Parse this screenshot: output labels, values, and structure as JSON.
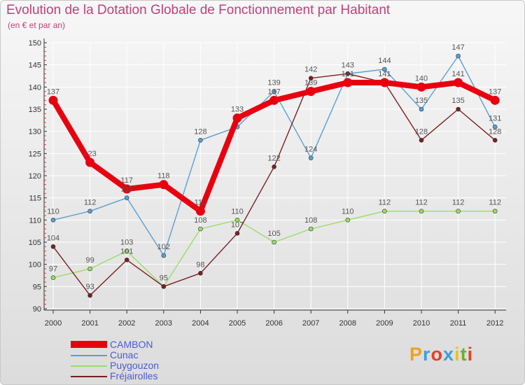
{
  "chart_data": {
    "type": "line",
    "title": "Evolution de la Dotation Globale de Fonctionnement par Habitant",
    "subtitle": "(en € et par an)",
    "xlabel": "",
    "ylabel": "",
    "ylim": [
      90,
      150
    ],
    "yticks": [
      90,
      95,
      100,
      105,
      110,
      115,
      120,
      125,
      130,
      135,
      140,
      145,
      150
    ],
    "categories": [
      "2000",
      "2001",
      "2002",
      "2003",
      "2004",
      "2005",
      "2006",
      "2007",
      "2008",
      "2009",
      "2010",
      "2011",
      "2012"
    ],
    "series": [
      {
        "name": "CAMBON",
        "color": "#e8000f",
        "values": [
          137,
          123,
          117,
          118,
          112,
          133,
          137,
          139,
          141,
          141,
          140,
          141,
          137
        ]
      },
      {
        "name": "Cunac",
        "color": "#5a9fd4",
        "values": [
          110,
          112,
          115,
          102,
          128,
          131,
          139,
          124,
          143,
          144,
          135,
          147,
          131
        ]
      },
      {
        "name": "Puygouzon",
        "color": "#99dd66",
        "values": [
          97,
          99,
          103,
          95,
          108,
          110,
          105,
          108,
          110,
          112,
          112,
          112,
          112
        ]
      },
      {
        "name": "Fréjairolles",
        "color": "#7a2020",
        "values": [
          104,
          93,
          101,
          95,
          98,
          107,
          122,
          142,
          143,
          141,
          128,
          135,
          128
        ]
      }
    ],
    "data_labels": [
      {
        "x": "2000",
        "text": "137"
      },
      {
        "x": "2000",
        "text": "110"
      },
      {
        "x": "2000",
        "text": "104"
      },
      {
        "x": "2000",
        "text": "97"
      },
      {
        "x": "2001",
        "text": "123"
      },
      {
        "x": "2001",
        "text": "112"
      },
      {
        "x": "2001",
        "text": "99"
      },
      {
        "x": "2001",
        "text": "93"
      },
      {
        "x": "2002",
        "text": "117"
      },
      {
        "x": "2002",
        "text": "115"
      },
      {
        "x": "2002",
        "text": "103"
      },
      {
        "x": "2002",
        "text": "101"
      },
      {
        "x": "2003",
        "text": "118"
      },
      {
        "x": "2003",
        "text": "102"
      },
      {
        "x": "2003",
        "text": "95"
      },
      {
        "x": "2004",
        "text": "128"
      },
      {
        "x": "2004",
        "text": "112"
      },
      {
        "x": "2004",
        "text": "108"
      },
      {
        "x": "2004",
        "text": "98"
      },
      {
        "x": "2005",
        "text": "133"
      },
      {
        "x": "2005",
        "text": "110"
      },
      {
        "x": "2005",
        "text": "107"
      },
      {
        "x": "2006",
        "text": "139"
      },
      {
        "x": "2006",
        "text": "137"
      },
      {
        "x": "2006",
        "text": "122"
      },
      {
        "x": "2006",
        "text": "105"
      },
      {
        "x": "2007",
        "text": "142"
      },
      {
        "x": "2007",
        "text": "139"
      },
      {
        "x": "2007",
        "text": "124"
      },
      {
        "x": "2007",
        "text": "108"
      },
      {
        "x": "2008",
        "text": "143"
      },
      {
        "x": "2008",
        "text": "141"
      },
      {
        "x": "2008",
        "text": "110"
      },
      {
        "x": "2009",
        "text": "144"
      },
      {
        "x": "2009",
        "text": "141"
      },
      {
        "x": "2009",
        "text": "112"
      },
      {
        "x": "2010",
        "text": "140"
      },
      {
        "x": "2010",
        "text": "135"
      },
      {
        "x": "2010",
        "text": "128"
      },
      {
        "x": "2010",
        "text": "112"
      },
      {
        "x": "2011",
        "text": "147"
      },
      {
        "x": "2011",
        "text": "141"
      },
      {
        "x": "2011",
        "text": "135"
      },
      {
        "x": "2011",
        "text": "112"
      },
      {
        "x": "2012",
        "text": "137"
      },
      {
        "x": "2012",
        "text": "131"
      },
      {
        "x": "2012",
        "text": "128"
      },
      {
        "x": "2012",
        "text": "112"
      }
    ],
    "legend": "bottom-left"
  },
  "logo": {
    "text": "Proxiti",
    "colors": [
      "#f0a020",
      "#38a0dc",
      "#e84020",
      "#38a0dc",
      "#f0c020",
      "#68b030",
      "#e84020"
    ]
  }
}
